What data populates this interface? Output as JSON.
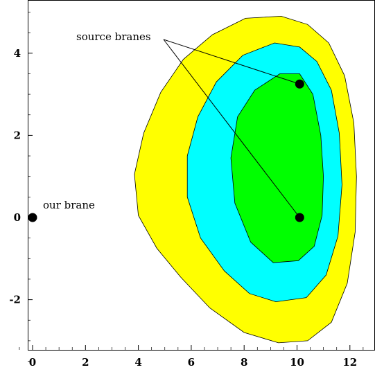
{
  "chart_data": {
    "type": "contour",
    "x_ticks": [
      "0",
      "2",
      "4",
      "6",
      "8",
      "10",
      "12"
    ],
    "y_ticks": [
      "4",
      "2",
      "0",
      "-2"
    ],
    "xlim": [
      -0.2,
      12.8
    ],
    "ylim": [
      -3.7,
      5.0
    ],
    "annotations": {
      "source_label": "source branes",
      "our_label": "our brane"
    },
    "points": {
      "our_brane": {
        "x": 0.0,
        "y": 0.0
      },
      "source_branes": [
        {
          "x": 10.1,
          "y": 3.25
        },
        {
          "x": 10.1,
          "y": 0.0
        }
      ]
    },
    "contours": [
      {
        "level": "outer",
        "color": "#ffff00",
        "points": [
          [
            9.4,
            4.9
          ],
          [
            10.4,
            4.7
          ],
          [
            11.2,
            4.25
          ],
          [
            11.8,
            3.45
          ],
          [
            12.15,
            2.3
          ],
          [
            12.25,
            1.0
          ],
          [
            12.2,
            -0.35
          ],
          [
            11.9,
            -1.6
          ],
          [
            11.3,
            -2.55
          ],
          [
            10.4,
            -3.0
          ],
          [
            9.3,
            -3.05
          ],
          [
            8.0,
            -2.8
          ],
          [
            6.7,
            -2.2
          ],
          [
            5.6,
            -1.45
          ],
          [
            4.7,
            -0.75
          ],
          [
            4.0,
            0.05
          ],
          [
            3.85,
            1.05
          ],
          [
            4.2,
            2.05
          ],
          [
            4.85,
            3.05
          ],
          [
            5.7,
            3.85
          ],
          [
            6.8,
            4.45
          ],
          [
            8.05,
            4.85
          ]
        ]
      },
      {
        "level": "middle",
        "color": "#00ffff",
        "points": [
          [
            9.15,
            4.25
          ],
          [
            10.1,
            4.15
          ],
          [
            10.75,
            3.8
          ],
          [
            11.3,
            3.1
          ],
          [
            11.6,
            2.05
          ],
          [
            11.7,
            0.8
          ],
          [
            11.55,
            -0.45
          ],
          [
            11.1,
            -1.4
          ],
          [
            10.35,
            -1.95
          ],
          [
            9.2,
            -2.05
          ],
          [
            8.2,
            -1.85
          ],
          [
            7.25,
            -1.3
          ],
          [
            6.35,
            -0.5
          ],
          [
            5.85,
            0.5
          ],
          [
            5.85,
            1.5
          ],
          [
            6.25,
            2.45
          ],
          [
            6.95,
            3.3
          ],
          [
            7.95,
            3.95
          ]
        ]
      },
      {
        "level": "inner",
        "color": "#00ff00",
        "points": [
          [
            9.35,
            3.5
          ],
          [
            10.1,
            3.5
          ],
          [
            10.6,
            3.0
          ],
          [
            10.9,
            2.0
          ],
          [
            11.0,
            1.0
          ],
          [
            10.95,
            0.05
          ],
          [
            10.65,
            -0.7
          ],
          [
            10.05,
            -1.05
          ],
          [
            9.1,
            -1.1
          ],
          [
            8.25,
            -0.6
          ],
          [
            7.65,
            0.35
          ],
          [
            7.5,
            1.45
          ],
          [
            7.75,
            2.45
          ],
          [
            8.4,
            3.1
          ]
        ]
      }
    ]
  }
}
